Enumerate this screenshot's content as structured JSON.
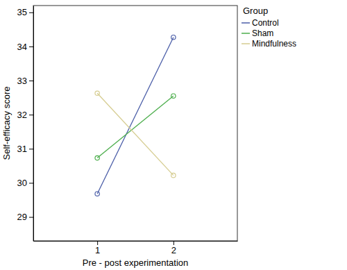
{
  "chart_data": {
    "type": "line",
    "x_label": "Pre - post experimentation",
    "y_label": "Self-efficacy score",
    "legend_title": "Group",
    "legend": "right",
    "marker": "circle",
    "x": [
      1,
      2
    ],
    "xlim": [
      0.16,
      2.84
    ],
    "xticks": [
      1,
      2
    ],
    "ylim": [
      28.3,
      35.2
    ],
    "yticks": [
      29,
      30,
      31,
      32,
      33,
      34,
      35
    ],
    "series": [
      {
        "name": "Control",
        "color": "#4b5ea8",
        "values": [
          29.68,
          34.27
        ]
      },
      {
        "name": "Sham",
        "color": "#4cae4c",
        "values": [
          30.73,
          32.55
        ]
      },
      {
        "name": "Mindfulness",
        "color": "#d6cd91",
        "values": [
          32.63,
          30.22
        ]
      }
    ]
  }
}
